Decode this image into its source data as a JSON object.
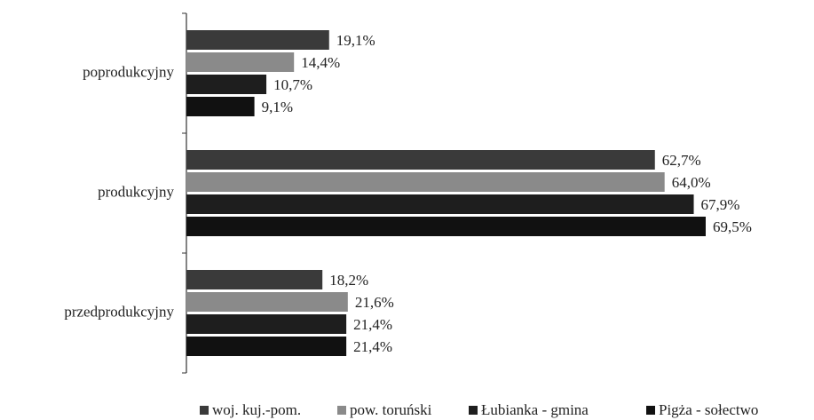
{
  "chart_data": {
    "type": "bar",
    "orientation": "horizontal",
    "categories": [
      "poprodukcyjny",
      "produkcyjny",
      "przedprodukcyjny"
    ],
    "series": [
      {
        "name": "woj. kuj.-pom.",
        "color": "#3a3a3a",
        "values": [
          19.1,
          62.7,
          18.2
        ],
        "value_labels": [
          "19,1%",
          "62,7%",
          "18,2%"
        ]
      },
      {
        "name": "pow. toruński",
        "color": "#8a8a8a",
        "values": [
          14.4,
          64.0,
          21.6
        ],
        "value_labels": [
          "14,4%",
          "64,0%",
          "21,6%"
        ]
      },
      {
        "name": "Łubianka - gmina",
        "color": "#1e1e1e",
        "values": [
          10.7,
          67.9,
          21.4
        ],
        "value_labels": [
          "10,7%",
          "67,9%",
          "21,4%"
        ]
      },
      {
        "name": "Pigża - sołectwo",
        "color": "#111111",
        "values": [
          9.1,
          69.5,
          21.4
        ],
        "value_labels": [
          "9,1%",
          "69,5%",
          "21,4%"
        ]
      }
    ],
    "legend": "bottom"
  }
}
